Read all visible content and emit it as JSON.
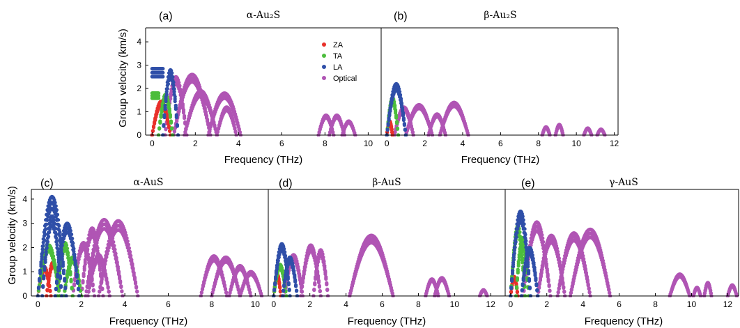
{
  "figure": {
    "ylabel": "Group velocity (km/s)",
    "xlabel": "Frequency (THz)"
  },
  "legend": {
    "items": [
      {
        "label": "ZA",
        "color": "#e8302a"
      },
      {
        "label": "TA",
        "color": "#4cbd3c"
      },
      {
        "label": "LA",
        "color": "#2f4fa8"
      },
      {
        "label": "Optical",
        "color": "#b055b4"
      }
    ]
  },
  "chart_data": [
    {
      "type": "scatter",
      "panel": "(a)",
      "title": "α-Au₂S",
      "xlabel": "Frequency (THz)",
      "ylabel": "Group velocity (km/s)",
      "xlim": [
        -0.3,
        10.6
      ],
      "ylim": [
        0,
        4.6
      ],
      "xticks": [
        0,
        2,
        4,
        6,
        8,
        10
      ],
      "yticks": [
        0,
        1,
        2,
        3,
        4
      ],
      "legend_position": "top-center",
      "series": [
        {
          "name": "ZA",
          "arcs": [
            {
              "x0": 0.0,
              "x1": 0.85,
              "peak": 1.45
            }
          ]
        },
        {
          "name": "TA",
          "arcs": [
            {
              "x0": 0.0,
              "x1": 0.3,
              "flat": 1.8
            },
            {
              "x0": 0.3,
              "x1": 0.95,
              "peak": 1.75
            }
          ]
        },
        {
          "name": "LA",
          "arcs": [
            {
              "x0": 0.0,
              "x1": 0.5,
              "flat": 2.85
            },
            {
              "x0": 0.5,
              "x1": 1.2,
              "peak": 2.8
            }
          ]
        },
        {
          "name": "Optical",
          "arcs": [
            {
              "x0": 0.6,
              "x1": 1.6,
              "peak": 2.5
            },
            {
              "x0": 1.0,
              "x1": 2.7,
              "peak": 2.6
            },
            {
              "x0": 1.5,
              "x1": 3.0,
              "peak": 1.9
            },
            {
              "x0": 2.6,
              "x1": 4.1,
              "peak": 1.8
            },
            {
              "x0": 3.0,
              "x1": 3.9,
              "peak": 1.2
            },
            {
              "x0": 7.7,
              "x1": 8.4,
              "peak": 0.85
            },
            {
              "x0": 8.2,
              "x1": 8.9,
              "peak": 0.85
            },
            {
              "x0": 8.8,
              "x1": 9.4,
              "peak": 0.6
            }
          ]
        }
      ]
    },
    {
      "type": "scatter",
      "panel": "(b)",
      "title": "β-Au₂S",
      "xlabel": "Frequency (THz)",
      "xlim": [
        -0.3,
        12.2
      ],
      "ylim": [
        0,
        4.6
      ],
      "xticks": [
        0,
        2,
        4,
        6,
        8,
        10,
        12
      ],
      "yticks": [],
      "series": [
        {
          "name": "ZA",
          "arcs": [
            {
              "x0": 0.0,
              "x1": 0.3,
              "peak": 0.6
            }
          ]
        },
        {
          "name": "TA",
          "arcs": [
            {
              "x0": 0.0,
              "x1": 0.6,
              "peak": 1.6
            }
          ]
        },
        {
          "name": "LA",
          "arcs": [
            {
              "x0": 0.0,
              "x1": 1.0,
              "peak": 2.2
            }
          ]
        },
        {
          "name": "Optical",
          "arcs": [
            {
              "x0": 0.4,
              "x1": 1.4,
              "peak": 1.2
            },
            {
              "x0": 1.0,
              "x1": 2.4,
              "peak": 1.3
            },
            {
              "x0": 2.2,
              "x1": 3.1,
              "peak": 0.9
            },
            {
              "x0": 2.8,
              "x1": 4.3,
              "peak": 1.4
            },
            {
              "x0": 8.2,
              "x1": 8.6,
              "peak": 0.35
            },
            {
              "x0": 8.9,
              "x1": 9.3,
              "peak": 0.45
            },
            {
              "x0": 10.4,
              "x1": 10.8,
              "peak": 0.3
            },
            {
              "x0": 11.1,
              "x1": 11.5,
              "peak": 0.25
            }
          ]
        }
      ]
    },
    {
      "type": "scatter",
      "panel": "(c)",
      "title": "α-AuS",
      "xlabel": "Frequency (THz)",
      "ylabel": "Group velocity (km/s)",
      "xlim": [
        -0.3,
        10.6
      ],
      "ylim": [
        0,
        4.4
      ],
      "xticks": [
        0,
        2,
        4,
        6,
        8,
        10
      ],
      "yticks": [
        0,
        1,
        2,
        3,
        4
      ],
      "series": [
        {
          "name": "ZA",
          "arcs": [
            {
              "x0": 0.0,
              "x1": 0.6,
              "peak": 1.2
            },
            {
              "x0": 0.4,
              "x1": 1.0,
              "peak": 1.4
            }
          ]
        },
        {
          "name": "TA",
          "arcs": [
            {
              "x0": 0.0,
              "x1": 1.0,
              "peak": 2.1
            },
            {
              "x0": 0.9,
              "x1": 1.6,
              "peak": 2.2
            },
            {
              "x0": 1.2,
              "x1": 2.0,
              "peak": 1.6
            }
          ]
        },
        {
          "name": "LA",
          "arcs": [
            {
              "x0": 0.0,
              "x1": 1.3,
              "peak": 4.1
            },
            {
              "x0": 0.8,
              "x1": 1.9,
              "peak": 3.0
            },
            {
              "x0": 0.2,
              "x1": 1.1,
              "peak": 3.3
            }
          ]
        },
        {
          "name": "Optical",
          "arcs": [
            {
              "x0": 1.6,
              "x1": 2.6,
              "peak": 2.2
            },
            {
              "x0": 2.0,
              "x1": 3.0,
              "peak": 2.8
            },
            {
              "x0": 2.2,
              "x1": 3.9,
              "peak": 3.15
            },
            {
              "x0": 2.8,
              "x1": 4.6,
              "peak": 3.1
            },
            {
              "x0": 2.3,
              "x1": 3.3,
              "peak": 1.7
            },
            {
              "x0": 7.5,
              "x1": 8.7,
              "peak": 1.65
            },
            {
              "x0": 8.0,
              "x1": 9.3,
              "peak": 1.6
            },
            {
              "x0": 8.8,
              "x1": 9.8,
              "peak": 1.25
            },
            {
              "x0": 9.3,
              "x1": 10.3,
              "peak": 1.0
            }
          ]
        }
      ]
    },
    {
      "type": "scatter",
      "panel": "(d)",
      "title": "β-AuS",
      "xlabel": "Frequency (THz)",
      "xlim": [
        -0.3,
        12.8
      ],
      "ylim": [
        0,
        4.4
      ],
      "xticks": [
        0,
        2,
        4,
        6,
        8,
        10,
        12
      ],
      "yticks": [],
      "series": [
        {
          "name": "ZA",
          "arcs": [
            {
              "x0": 0.0,
              "x1": 0.4,
              "peak": 0.9
            }
          ]
        },
        {
          "name": "TA",
          "arcs": [
            {
              "x0": 0.0,
              "x1": 0.7,
              "peak": 1.3
            }
          ]
        },
        {
          "name": "LA",
          "arcs": [
            {
              "x0": 0.0,
              "x1": 0.9,
              "peak": 2.15
            },
            {
              "x0": 0.5,
              "x1": 1.3,
              "peak": 1.6
            }
          ]
        },
        {
          "name": "Optical",
          "arcs": [
            {
              "x0": 0.6,
              "x1": 1.6,
              "peak": 1.7
            },
            {
              "x0": 1.5,
              "x1": 2.6,
              "peak": 2.1
            },
            {
              "x0": 2.2,
              "x1": 3.0,
              "peak": 1.9
            },
            {
              "x0": 4.2,
              "x1": 6.6,
              "peak": 2.5
            },
            {
              "x0": 8.4,
              "x1": 9.1,
              "peak": 0.7
            },
            {
              "x0": 8.9,
              "x1": 9.7,
              "peak": 0.75
            },
            {
              "x0": 11.4,
              "x1": 11.8,
              "peak": 0.25
            }
          ]
        }
      ]
    },
    {
      "type": "scatter",
      "panel": "(e)",
      "title": "γ-AuS",
      "xlabel": "Frequency (THz)",
      "xlim": [
        -0.3,
        12.6
      ],
      "ylim": [
        0,
        4.4
      ],
      "xticks": [
        0,
        2,
        4,
        6,
        8,
        10,
        12
      ],
      "yticks": [],
      "series": [
        {
          "name": "ZA",
          "arcs": [
            {
              "x0": 0.0,
              "x1": 0.4,
              "peak": 0.8
            }
          ]
        },
        {
          "name": "TA",
          "arcs": [
            {
              "x0": 0.0,
              "x1": 0.8,
              "peak": 2.9
            },
            {
              "x0": 0.3,
              "x1": 1.0,
              "peak": 2.4
            }
          ]
        },
        {
          "name": "LA",
          "arcs": [
            {
              "x0": 0.0,
              "x1": 1.1,
              "peak": 3.5
            },
            {
              "x0": 0.6,
              "x1": 1.5,
              "peak": 2.0
            }
          ]
        },
        {
          "name": "Optical",
          "arcs": [
            {
              "x0": 0.7,
              "x1": 2.2,
              "peak": 3.05
            },
            {
              "x0": 1.5,
              "x1": 3.0,
              "peak": 2.5
            },
            {
              "x0": 2.6,
              "x1": 4.4,
              "peak": 2.6
            },
            {
              "x0": 3.3,
              "x1": 5.5,
              "peak": 2.75
            },
            {
              "x0": 8.8,
              "x1": 9.9,
              "peak": 0.9
            },
            {
              "x0": 10.1,
              "x1": 10.5,
              "peak": 0.35
            },
            {
              "x0": 10.7,
              "x1": 11.1,
              "peak": 0.55
            },
            {
              "x0": 12.0,
              "x1": 12.5,
              "peak": 0.45
            }
          ]
        }
      ]
    }
  ]
}
